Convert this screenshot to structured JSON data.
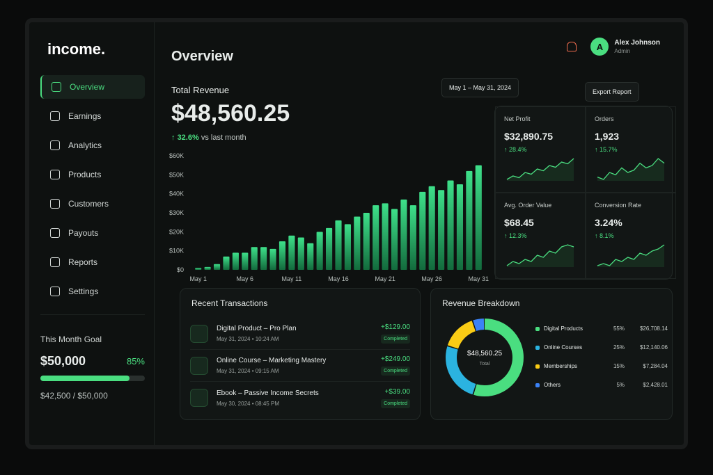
{
  "app": {
    "logo": "income."
  },
  "nav": [
    "Overview",
    "Earnings",
    "Analytics",
    "Products",
    "Customers",
    "Payouts",
    "Reports",
    "Settings"
  ],
  "goal": {
    "title": "This Month Goal",
    "amount": "$50,000",
    "percent": 85,
    "percent_label": "85%",
    "progress_text": "$42,500 / $50,000"
  },
  "header": {
    "title": "Overview",
    "avatar": "A",
    "user_name": "Alex Johnson",
    "user_role": "Admin",
    "date_range": "May 1 – May 31, 2024",
    "export": "Export Report"
  },
  "revenue": {
    "label": "Total Revenue",
    "total": "$48,560.25",
    "change": "32.6%",
    "change_note": "vs last month"
  },
  "chart_data": {
    "type": "bar",
    "categories": [
      "May 1",
      null,
      null,
      null,
      null,
      "May 6",
      null,
      null,
      null,
      null,
      "May 11",
      null,
      null,
      null,
      null,
      "May 16",
      null,
      null,
      null,
      null,
      "May 21",
      null,
      null,
      null,
      null,
      "May 26",
      null,
      null,
      null,
      null,
      "May 31"
    ],
    "values": [
      1000,
      1500,
      3000,
      7000,
      9000,
      9000,
      12000,
      12000,
      11000,
      15000,
      18000,
      17000,
      14000,
      20000,
      22000,
      26000,
      24000,
      28000,
      30000,
      34000,
      35000,
      32000,
      37000,
      34000,
      41000,
      44000,
      42000,
      47000,
      45000,
      52000,
      55000
    ],
    "color": "#3ee08a",
    "ylim": [
      0,
      60000
    ],
    "yticks": [
      {
        "value": 0,
        "label": "$0"
      },
      {
        "value": 10000,
        "label": "$10K"
      },
      {
        "value": 20000,
        "label": "$20K"
      },
      {
        "value": 30000,
        "label": "$30K"
      },
      {
        "value": 40000,
        "label": "$40K"
      },
      {
        "value": 50000,
        "label": "$50K"
      },
      {
        "value": 60000,
        "label": "$60K"
      }
    ],
    "grid": false
  },
  "kpis": [
    {
      "label": "Net Profit",
      "value": "$32,890.75",
      "change": "28.4%",
      "trend": [
        2,
        3,
        2.5,
        4,
        3.5,
        5,
        4.5,
        6,
        5.5,
        7,
        6.5,
        8
      ]
    },
    {
      "label": "Orders",
      "value": "1,923",
      "change": "15.7%",
      "trend": [
        3,
        2.5,
        4,
        3.5,
        5,
        4,
        4.5,
        6,
        5,
        5.5,
        7,
        6
      ]
    },
    {
      "label": "Avg. Order Value",
      "value": "$68.45",
      "change": "12.3%",
      "trend": [
        2,
        3,
        2.5,
        3.5,
        3,
        4.5,
        4,
        5.5,
        5,
        6.5,
        7,
        6.5
      ]
    },
    {
      "label": "Conversion Rate",
      "value": "3.24%",
      "change": "8.1%",
      "trend": [
        2,
        2.5,
        2,
        3.5,
        3,
        4,
        3.5,
        5,
        4.5,
        5.5,
        6,
        7
      ]
    }
  ],
  "transactions": {
    "title": "Recent Transactions",
    "items": [
      {
        "name": "Digital Product – Pro Plan",
        "date": "May 31, 2024",
        "time": "10:24 AM",
        "amount": "+$129.00",
        "status": "Completed"
      },
      {
        "name": "Online Course – Marketing Mastery",
        "date": "May 31, 2024",
        "time": "09:15 AM",
        "amount": "+$249.00",
        "status": "Completed"
      },
      {
        "name": "Ebook – Passive Income Secrets",
        "date": "May 30, 2024",
        "time": "08:45 PM",
        "amount": "+$39.00",
        "status": "Completed"
      }
    ]
  },
  "breakdown": {
    "title": "Revenue Breakdown",
    "total": "$48,560.25",
    "total_label": "Total",
    "items": [
      {
        "name": "Digital Products",
        "percent": 55,
        "percent_label": "55%",
        "amount": "$26,708.14",
        "color": "#4ade80"
      },
      {
        "name": "Online Courses",
        "percent": 25,
        "percent_label": "25%",
        "amount": "$12,140.06",
        "color": "#2bb3e0"
      },
      {
        "name": "Memberships",
        "percent": 15,
        "percent_label": "15%",
        "amount": "$7,284.04",
        "color": "#facc15"
      },
      {
        "name": "Others",
        "percent": 5,
        "percent_label": "5%",
        "amount": "$2,428.01",
        "color": "#3b82f6"
      }
    ]
  }
}
